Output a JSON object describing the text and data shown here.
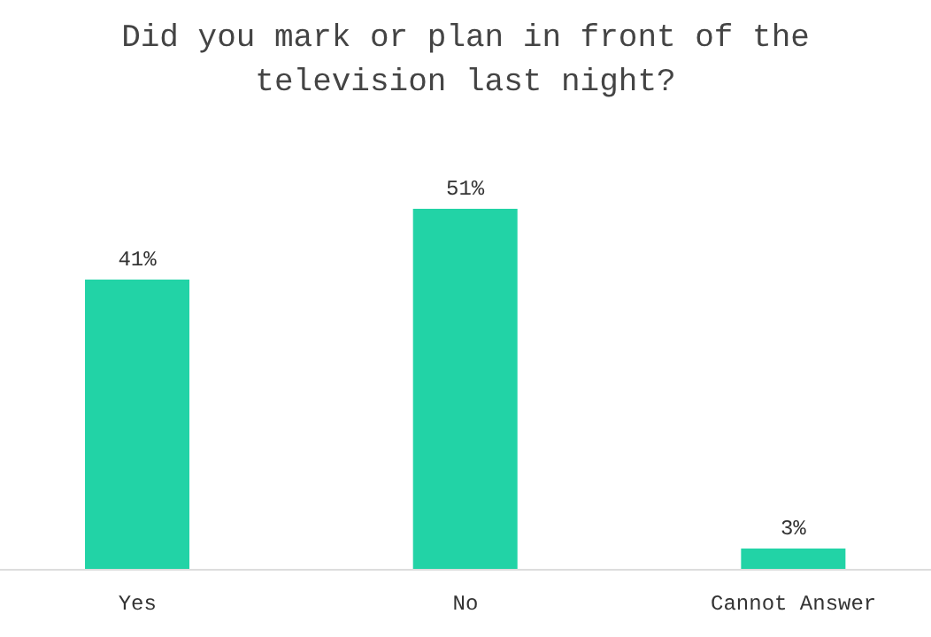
{
  "chart_data": {
    "type": "bar",
    "title": "Did you mark or plan in front of the television last night?",
    "categories": [
      "Yes",
      "No",
      "Cannot Answer"
    ],
    "values": [
      41,
      51,
      3
    ],
    "value_labels": [
      "41%",
      "51%",
      "3%"
    ],
    "color": "#22d3a6",
    "tick_labels": "x"
  }
}
